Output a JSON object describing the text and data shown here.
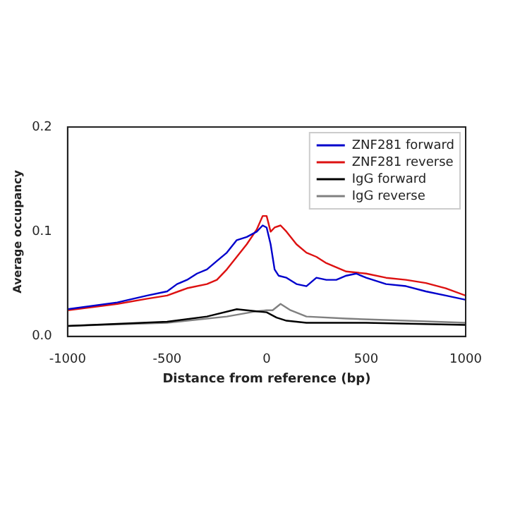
{
  "chart_data": {
    "type": "line",
    "xlabel": "Distance from reference (bp)",
    "ylabel": "Average occupancy",
    "xlim": [
      -1000,
      1000
    ],
    "xticks": [
      -1000,
      -500,
      0,
      500,
      1000
    ],
    "ylim": [
      0,
      0.2
    ],
    "yticks": [
      {
        "value": 0,
        "label": "0.0"
      },
      {
        "value": 0.1,
        "label": "0.1"
      },
      {
        "value": 0.2,
        "label": "0.2"
      }
    ],
    "legend": "top right",
    "grid": false,
    "marker": "none",
    "line_style": "solid",
    "series": [
      {
        "name": "ZNF281 forward",
        "color": "#0000cc",
        "x": [
          -1000,
          -750,
          -600,
          -500,
          -450,
          -400,
          -350,
          -300,
          -250,
          -200,
          -150,
          -100,
          -50,
          -20,
          0,
          20,
          40,
          60,
          100,
          150,
          200,
          250,
          300,
          350,
          400,
          450,
          500,
          600,
          700,
          800,
          900,
          1000
        ],
        "values": [
          0.026,
          0.0325,
          0.039,
          0.043,
          0.05,
          0.054,
          0.06,
          0.064,
          0.072,
          0.08,
          0.092,
          0.095,
          0.1,
          0.106,
          0.104,
          0.088,
          0.064,
          0.058,
          0.056,
          0.05,
          0.048,
          0.056,
          0.054,
          0.054,
          0.058,
          0.06,
          0.056,
          0.05,
          0.048,
          0.043,
          0.039,
          0.035
        ]
      },
      {
        "name": "ZNF281 reverse",
        "color": "#dd1111",
        "x": [
          -1000,
          -750,
          -600,
          -500,
          -400,
          -300,
          -250,
          -200,
          -150,
          -100,
          -50,
          -20,
          0,
          20,
          40,
          70,
          100,
          150,
          200,
          250,
          300,
          350,
          400,
          500,
          600,
          700,
          800,
          900,
          1000
        ],
        "values": [
          0.025,
          0.031,
          0.036,
          0.039,
          0.046,
          0.05,
          0.054,
          0.064,
          0.076,
          0.088,
          0.102,
          0.115,
          0.115,
          0.1,
          0.104,
          0.106,
          0.1,
          0.088,
          0.08,
          0.076,
          0.07,
          0.066,
          0.062,
          0.06,
          0.056,
          0.054,
          0.051,
          0.046,
          0.039
        ]
      },
      {
        "name": "IgG forward",
        "color": "#000000",
        "x": [
          -1000,
          -500,
          -300,
          -150,
          -50,
          0,
          50,
          100,
          200,
          500,
          1000
        ],
        "values": [
          0.01,
          0.014,
          0.019,
          0.026,
          0.024,
          0.023,
          0.018,
          0.015,
          0.013,
          0.013,
          0.011
        ]
      },
      {
        "name": "IgG reverse",
        "color": "#808080",
        "x": [
          -1000,
          -500,
          -200,
          -50,
          0,
          30,
          70,
          120,
          200,
          400,
          700,
          1000
        ],
        "values": [
          0.01,
          0.013,
          0.019,
          0.024,
          0.025,
          0.025,
          0.031,
          0.025,
          0.019,
          0.017,
          0.015,
          0.013
        ]
      }
    ]
  }
}
